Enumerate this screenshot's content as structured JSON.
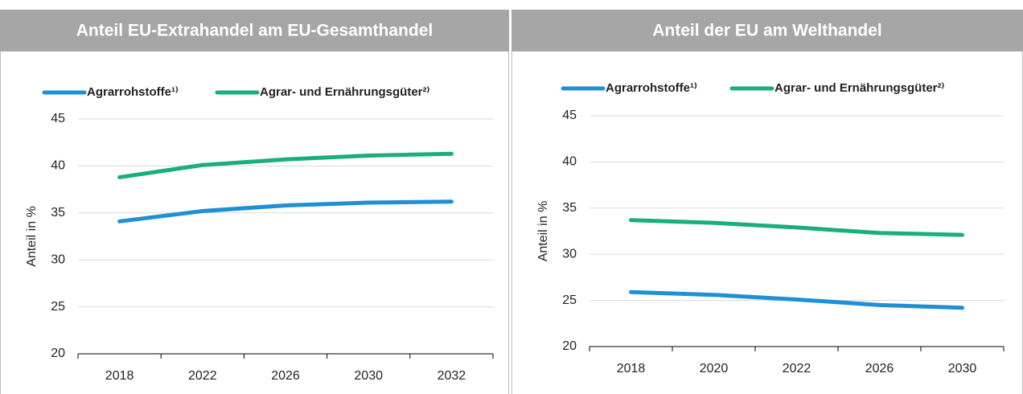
{
  "chart_data": [
    {
      "type": "line",
      "title": "Anteil EU-Extrahandel am EU-Gesamthandel",
      "y_label": "Anteil in %",
      "categories": [
        "2018",
        "2022",
        "2026",
        "2030",
        "2032"
      ],
      "series": [
        {
          "name": "Agrarrohstoffe¹⁾",
          "color": "#1f8fd6",
          "values": [
            34.1,
            35.2,
            35.8,
            36.1,
            36.2
          ]
        },
        {
          "name": "Agrar- und Ernährungsgüter²⁾",
          "color": "#1aae7c",
          "values": [
            38.8,
            40.1,
            40.7,
            41.1,
            41.3
          ]
        }
      ],
      "ylim": [
        20,
        45
      ],
      "yticks": [
        20,
        25,
        30,
        35,
        40,
        45
      ],
      "grid": true
    },
    {
      "type": "line",
      "title": "Anteil der EU am Welthandel",
      "y_label": "Anteil in %",
      "categories": [
        "2018",
        "2020",
        "2022",
        "2026",
        "2030"
      ],
      "series": [
        {
          "name": "Agrarrohstoffe¹⁾",
          "color": "#1f8fd6",
          "values": [
            25.9,
            25.6,
            25.1,
            24.5,
            24.2
          ]
        },
        {
          "name": "Agrar- und Ernährungsgüter²⁾",
          "color": "#1aae7c",
          "values": [
            33.7,
            33.4,
            32.9,
            32.3,
            32.1
          ]
        }
      ],
      "ylim": [
        20,
        45
      ],
      "yticks": [
        20,
        25,
        30,
        35,
        40,
        45
      ],
      "grid": true
    }
  ]
}
